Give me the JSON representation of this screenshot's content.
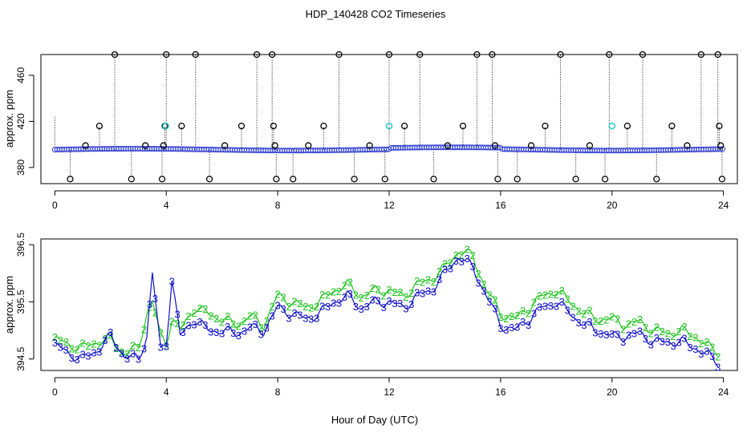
{
  "title": "HDP_140428  CO2 Timeseries",
  "xlabel": "Hour of Day (UTC)",
  "colors": {
    "axis": "#000000",
    "series2": "#22c422",
    "series3": "#1010c8",
    "cyan": "#22cccc",
    "blue_points": "#2a3ad0"
  },
  "chart_data": [
    {
      "type": "scatter",
      "panel": "top",
      "ylabel": "approx. ppm",
      "xlim": [
        -0.5,
        24.5
      ],
      "ylim": [
        366,
        478
      ],
      "xticks": [
        "0",
        "4",
        "8",
        "12",
        "16",
        "20",
        "24"
      ],
      "yticks": [
        "380",
        "420",
        "460"
      ],
      "baseline": 395.5,
      "series": [
        {
          "name": "black outliers",
          "points": [
            [
              0.55,
              370
            ],
            [
              1.1,
              399
            ],
            [
              1.6,
              416
            ],
            [
              2.15,
              478
            ],
            [
              2.75,
              370
            ],
            [
              3.25,
              399
            ],
            [
              3.85,
              370
            ],
            [
              3.9,
              399
            ],
            [
              3.95,
              416
            ],
            [
              4.0,
              478
            ],
            [
              4.55,
              416
            ],
            [
              5.05,
              478
            ],
            [
              5.55,
              370
            ],
            [
              6.1,
              399
            ],
            [
              6.7,
              416
            ],
            [
              7.25,
              478
            ],
            [
              7.8,
              478
            ],
            [
              7.85,
              416
            ],
            [
              7.9,
              399
            ],
            [
              7.95,
              370
            ],
            [
              8.55,
              370
            ],
            [
              9.1,
              399
            ],
            [
              9.65,
              416
            ],
            [
              10.2,
              478
            ],
            [
              10.75,
              370
            ],
            [
              11.3,
              399
            ],
            [
              11.85,
              370
            ],
            [
              12.0,
              478
            ],
            [
              12.55,
              416
            ],
            [
              13.1,
              478
            ],
            [
              13.6,
              370
            ],
            [
              14.1,
              399
            ],
            [
              14.65,
              416
            ],
            [
              15.15,
              478
            ],
            [
              15.7,
              478
            ],
            [
              15.8,
              399
            ],
            [
              15.9,
              370
            ],
            [
              16.6,
              370
            ],
            [
              17.1,
              399
            ],
            [
              17.6,
              416
            ],
            [
              18.15,
              478
            ],
            [
              18.7,
              370
            ],
            [
              19.2,
              399
            ],
            [
              19.75,
              370
            ],
            [
              19.9,
              478
            ],
            [
              20.55,
              416
            ],
            [
              21.1,
              478
            ],
            [
              21.6,
              370
            ],
            [
              22.15,
              416
            ],
            [
              22.7,
              399
            ],
            [
              23.2,
              478
            ],
            [
              23.8,
              478
            ],
            [
              23.85,
              416
            ],
            [
              23.9,
              399
            ],
            [
              23.95,
              370
            ]
          ]
        },
        {
          "name": "cyan points",
          "points": [
            [
              3.98,
              416
            ],
            [
              12.0,
              416
            ],
            [
              20.0,
              416
            ]
          ]
        }
      ]
    },
    {
      "type": "line",
      "panel": "bottom",
      "ylabel": "approx. ppm",
      "xlim": [
        -0.5,
        24.5
      ],
      "ylim": [
        394.3,
        396.6
      ],
      "xticks": [
        "0",
        "4",
        "8",
        "12",
        "16",
        "20",
        "24"
      ],
      "yticks": [
        "394.5",
        "395.5",
        "396.5"
      ],
      "anchors_x": [
        0.0,
        0.5,
        1.0,
        1.5,
        2.0,
        2.5,
        3.0,
        3.3,
        3.5,
        3.8,
        4.0,
        4.2,
        4.5,
        5.0,
        5.5,
        6.0,
        6.5,
        7.0,
        7.5,
        8.0,
        8.5,
        9.0,
        9.5,
        10.0,
        10.5,
        11.0,
        11.5,
        12.0,
        12.5,
        13.0,
        13.5,
        14.0,
        14.5,
        15.0,
        15.5,
        16.0,
        16.5,
        17.0,
        17.5,
        18.0,
        18.5,
        19.0,
        19.5,
        20.0,
        20.5,
        21.0,
        21.5,
        22.0,
        22.5,
        23.0,
        23.5,
        23.9
      ],
      "series": [
        {
          "name": "2",
          "label_char": "2",
          "values": [
            394.85,
            394.75,
            394.7,
            394.8,
            394.85,
            394.6,
            394.7,
            395.3,
            395.5,
            394.9,
            394.8,
            395.2,
            395.0,
            395.4,
            395.3,
            395.2,
            395.1,
            395.25,
            395.1,
            395.6,
            395.5,
            395.4,
            395.5,
            395.7,
            395.8,
            395.6,
            395.7,
            395.7,
            395.6,
            395.8,
            395.9,
            396.1,
            396.4,
            396.3,
            395.7,
            395.3,
            395.2,
            395.4,
            395.6,
            395.7,
            395.5,
            395.3,
            395.2,
            395.2,
            395.1,
            395.15,
            395.0,
            394.95,
            395.0,
            394.9,
            394.7,
            394.6
          ]
        },
        {
          "name": "3",
          "label_char": "3",
          "values": [
            394.75,
            394.6,
            394.5,
            394.65,
            394.9,
            394.55,
            394.5,
            394.9,
            396.0,
            394.65,
            394.8,
            395.9,
            394.9,
            395.2,
            395.0,
            395.0,
            394.95,
            395.05,
            395.0,
            395.4,
            395.3,
            395.2,
            395.3,
            395.5,
            395.6,
            395.4,
            395.5,
            395.5,
            395.4,
            395.6,
            395.7,
            396.0,
            396.3,
            396.1,
            395.6,
            395.1,
            395.0,
            395.2,
            395.4,
            395.5,
            395.3,
            395.1,
            395.0,
            394.9,
            394.9,
            394.95,
            394.8,
            394.8,
            394.8,
            394.7,
            394.55,
            394.4
          ]
        }
      ]
    }
  ]
}
